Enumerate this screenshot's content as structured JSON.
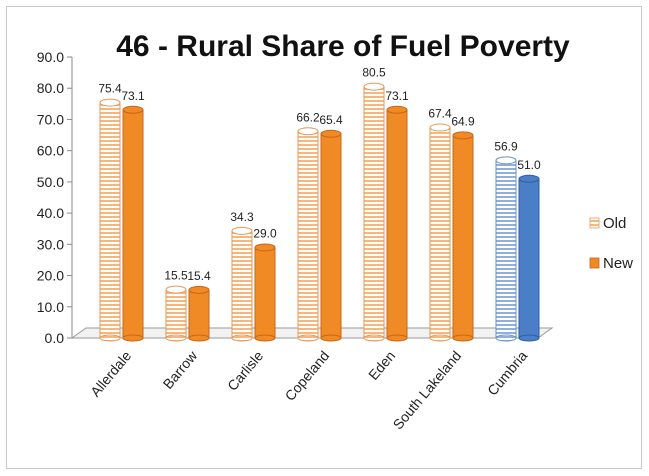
{
  "chart_data": {
    "type": "bar",
    "title": "46 - Rural Share of Fuel Poverty",
    "xlabel": "",
    "ylabel": "",
    "ylim": [
      0,
      90
    ],
    "yticks": [
      "0.0",
      "10.0",
      "20.0",
      "30.0",
      "40.0",
      "50.0",
      "60.0",
      "70.0",
      "80.0",
      "90.0"
    ],
    "categories": [
      "Allerdale",
      "Barrow",
      "Carlisle",
      "Copeland",
      "Eden",
      "South Lakeland",
      "Cumbria"
    ],
    "series": [
      {
        "name": "Old",
        "values": [
          75.4,
          15.5,
          34.3,
          66.2,
          80.5,
          67.4,
          56.9
        ],
        "labels": [
          "75.4",
          "15.5",
          "34.3",
          "66.2",
          "80.5",
          "67.4",
          "56.9"
        ]
      },
      {
        "name": "New",
        "values": [
          73.1,
          15.4,
          29.0,
          65.4,
          73.1,
          64.9,
          51.0
        ],
        "labels": [
          "73.1",
          "15.4",
          "29.0",
          "65.4",
          "73.1",
          "64.9",
          "51.0"
        ]
      }
    ],
    "legend_position": "right",
    "grid": false,
    "colors": {
      "new": "#f08a24",
      "new_dark": "#c8661a",
      "old_stripe": "#f7b77c",
      "highlight_new": "#4a7fc7",
      "highlight_new_dark": "#2f5fa3",
      "highlight_old_stripe": "#8fb0dc"
    }
  }
}
